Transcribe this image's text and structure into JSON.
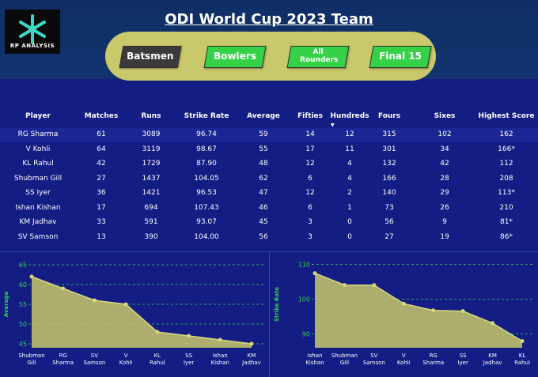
{
  "header": {
    "title": "ODI World Cup 2023 Team",
    "logo_text": "RP ANALYSIS",
    "logo_icon": "snowflake-icon"
  },
  "nav": {
    "items": [
      {
        "label": "Batsmen",
        "state": "active"
      },
      {
        "label": "Bowlers",
        "state": "inactive"
      },
      {
        "label": "All Rounders",
        "state": "inactive"
      },
      {
        "label": "Final 15",
        "state": "inactive"
      }
    ],
    "active_color": "#3a3a3a",
    "inactive_color": "#35d247"
  },
  "table": {
    "columns": [
      "Player",
      "Matches",
      "Runs",
      "Strike Rate",
      "Average",
      "Fifties",
      "Hundreds",
      "Fours",
      "Sixes",
      "Highest Score"
    ],
    "sorted_column": "Hundreds",
    "rows": [
      [
        "RG Sharma",
        "61",
        "3089",
        "96.74",
        "59",
        "14",
        "12",
        "315",
        "102",
        "162"
      ],
      [
        "V Kohli",
        "64",
        "3119",
        "98.67",
        "55",
        "17",
        "11",
        "301",
        "34",
        "166*"
      ],
      [
        "KL Rahul",
        "42",
        "1729",
        "87.90",
        "48",
        "12",
        "4",
        "132",
        "42",
        "112"
      ],
      [
        "Shubman Gill",
        "27",
        "1437",
        "104.05",
        "62",
        "6",
        "4",
        "166",
        "28",
        "208"
      ],
      [
        "SS Iyer",
        "36",
        "1421",
        "96.53",
        "47",
        "12",
        "2",
        "140",
        "29",
        "113*"
      ],
      [
        "Ishan Kishan",
        "17",
        "694",
        "107.43",
        "46",
        "6",
        "1",
        "73",
        "26",
        "210"
      ],
      [
        "KM Jadhav",
        "33",
        "591",
        "93.07",
        "45",
        "3",
        "0",
        "56",
        "9",
        "81*"
      ],
      [
        "SV Samson",
        "13",
        "390",
        "104.00",
        "56",
        "3",
        "0",
        "27",
        "19",
        "86*"
      ]
    ]
  },
  "chart_data": [
    {
      "type": "area",
      "xlabel": "",
      "ylabel": "Average",
      "categories": [
        "Shubman Gill",
        "RG Sharma",
        "SV Samson",
        "V Kohli",
        "KL Rahul",
        "SS Iyer",
        "Ishan Kishan",
        "KM Jadhav"
      ],
      "values": [
        62,
        59,
        56,
        55,
        48,
        47,
        46,
        45
      ],
      "yticks": [
        45,
        50,
        55,
        60,
        65
      ],
      "ylim": [
        44,
        66
      ],
      "grid": true,
      "color": "#c9c86a"
    },
    {
      "type": "area",
      "xlabel": "",
      "ylabel": "Strike Rate",
      "categories": [
        "Ishan Kishan",
        "Shubman Gill",
        "SV Samson",
        "V Kohli",
        "RG Sharma",
        "SS Iyer",
        "KM Jadhav",
        "KL Rahul"
      ],
      "values": [
        107.43,
        104.05,
        104.0,
        98.67,
        96.74,
        96.53,
        93.07,
        87.9
      ],
      "yticks": [
        90,
        100,
        110
      ],
      "ylim": [
        86,
        111
      ],
      "grid": true,
      "color": "#c9c86a"
    }
  ]
}
